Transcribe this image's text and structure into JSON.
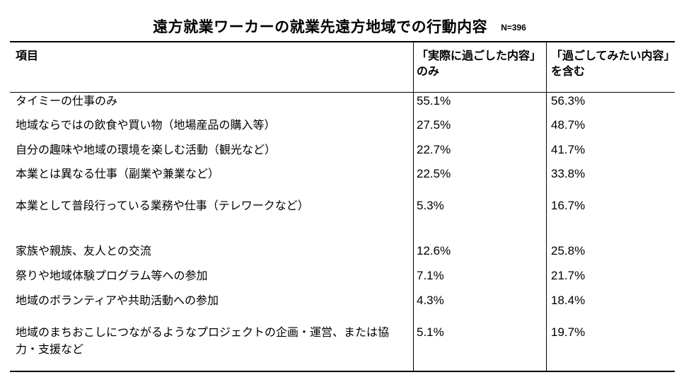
{
  "title": "遠方就業ワーカーの就業先遠方地域での行動内容",
  "sample": "N=396",
  "headers": {
    "item": "項目",
    "actual": "「実際に過ごした内容」のみ",
    "desired": "「過ごしてみたい内容」を含む"
  },
  "rows": [
    {
      "label": "タイミーの仕事のみ",
      "actual": "55.1%",
      "desired": "56.3%"
    },
    {
      "label": "地域ならではの飲食や買い物（地場産品の購入等）",
      "actual": "27.5%",
      "desired": "48.7%"
    },
    {
      "label": "自分の趣味や地域の環境を楽しむ活動（観光など）",
      "actual": "22.7%",
      "desired": "41.7%"
    },
    {
      "label": "本業とは異なる仕事（副業や兼業など）",
      "actual": "22.5%",
      "desired": "33.8%"
    },
    {
      "label": "本業として普段行っている業務や仕事（テレワークなど）",
      "actual": "5.3%",
      "desired": "16.7%"
    },
    {
      "label": "家族や親族、友人との交流",
      "actual": "12.6%",
      "desired": "25.8%"
    },
    {
      "label": "祭りや地域体験プログラム等への参加",
      "actual": "7.1%",
      "desired": "21.7%"
    },
    {
      "label": "地域のボランティアや共助活動への参加",
      "actual": "4.3%",
      "desired": "18.4%"
    },
    {
      "label": "地域のまちおこしにつながるようなプロジェクトの企画・運営、または協力・支援など",
      "actual": "5.1%",
      "desired": "19.7%"
    }
  ]
}
